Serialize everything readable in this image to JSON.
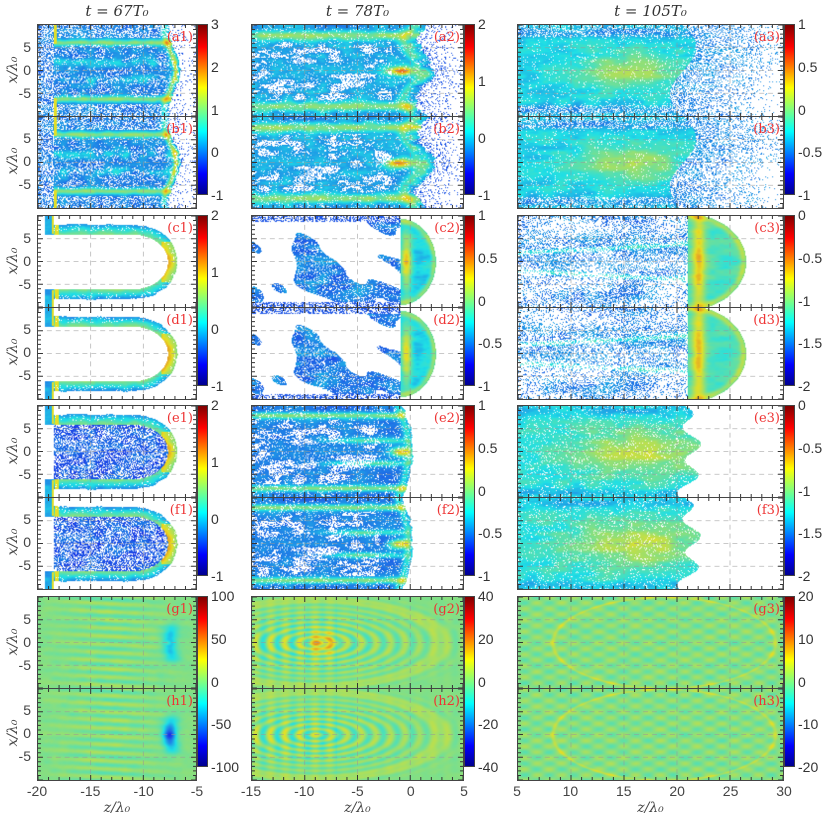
{
  "chart_data": {
    "type": "heatmap",
    "colormap": "jet",
    "ylabel": "x/λ₀",
    "ylim": [
      -10,
      10
    ],
    "yticks": [
      5,
      0,
      -5
    ],
    "columns": [
      {
        "title": "t = 67T₀",
        "xlabel": "z/λ₀",
        "xlim": [
          -20,
          -5
        ],
        "xticks": [
          -20,
          -15,
          -10,
          -5
        ]
      },
      {
        "title": "t = 78T₀",
        "xlabel": "z/λ₀",
        "xlim": [
          -15,
          5
        ],
        "xticks": [
          -15,
          -10,
          -5,
          0,
          5
        ]
      },
      {
        "title": "t = 105T₀",
        "xlabel": "z/λ₀",
        "xlim": [
          5,
          30
        ],
        "xticks": [
          5,
          10,
          15,
          20,
          25,
          30
        ]
      }
    ],
    "panels": [
      {
        "label": "(a1)",
        "row": 0,
        "col": 0
      },
      {
        "label": "(a2)",
        "row": 0,
        "col": 1
      },
      {
        "label": "(a3)",
        "row": 0,
        "col": 2
      },
      {
        "label": "(b1)",
        "row": 1,
        "col": 0
      },
      {
        "label": "(b2)",
        "row": 1,
        "col": 1
      },
      {
        "label": "(b3)",
        "row": 1,
        "col": 2
      },
      {
        "label": "(c1)",
        "row": 2,
        "col": 0
      },
      {
        "label": "(c2)",
        "row": 2,
        "col": 1
      },
      {
        "label": "(c3)",
        "row": 2,
        "col": 2
      },
      {
        "label": "(d1)",
        "row": 3,
        "col": 0
      },
      {
        "label": "(d2)",
        "row": 3,
        "col": 1
      },
      {
        "label": "(d3)",
        "row": 3,
        "col": 2
      },
      {
        "label": "(e1)",
        "row": 4,
        "col": 0
      },
      {
        "label": "(e2)",
        "row": 4,
        "col": 1
      },
      {
        "label": "(e3)",
        "row": 4,
        "col": 2
      },
      {
        "label": "(f1)",
        "row": 5,
        "col": 0
      },
      {
        "label": "(f2)",
        "row": 5,
        "col": 1
      },
      {
        "label": "(f3)",
        "row": 5,
        "col": 2
      },
      {
        "label": "(g1)",
        "row": 6,
        "col": 0
      },
      {
        "label": "(g2)",
        "row": 6,
        "col": 1
      },
      {
        "label": "(g3)",
        "row": 6,
        "col": 2
      },
      {
        "label": "(h1)",
        "row": 7,
        "col": 0
      },
      {
        "label": "(h2)",
        "row": 7,
        "col": 1
      },
      {
        "label": "(h3)",
        "row": 7,
        "col": 2
      }
    ],
    "colorbars": [
      {
        "pair": 0,
        "col": 0,
        "range": [
          -1,
          3
        ],
        "ticks": [
          "3",
          "2",
          "1",
          "0",
          "-1"
        ]
      },
      {
        "pair": 0,
        "col": 1,
        "range": [
          -1,
          2
        ],
        "ticks": [
          "2",
          "1",
          "0",
          "-1"
        ]
      },
      {
        "pair": 0,
        "col": 2,
        "range": [
          -1,
          1
        ],
        "ticks": [
          "1",
          "0.5",
          "0",
          "-0.5",
          "-1"
        ]
      },
      {
        "pair": 1,
        "col": 0,
        "range": [
          -1,
          2
        ],
        "ticks": [
          "2",
          "1",
          "0",
          "-1"
        ]
      },
      {
        "pair": 1,
        "col": 1,
        "range": [
          -1,
          1
        ],
        "ticks": [
          "1",
          "0.5",
          "0",
          "-0.5",
          "-1"
        ]
      },
      {
        "pair": 1,
        "col": 2,
        "range": [
          -2,
          0
        ],
        "ticks": [
          "0",
          "-0.5",
          "-1",
          "-1.5",
          "-2"
        ]
      },
      {
        "pair": 2,
        "col": 0,
        "range": [
          -1,
          2
        ],
        "ticks": [
          "2",
          "1",
          "0",
          "-1"
        ]
      },
      {
        "pair": 2,
        "col": 1,
        "range": [
          -1,
          1
        ],
        "ticks": [
          "1",
          "0.5",
          "0",
          "-0.5",
          "-1"
        ]
      },
      {
        "pair": 2,
        "col": 2,
        "range": [
          -2,
          0
        ],
        "ticks": [
          "0",
          "-0.5",
          "-1",
          "-1.5",
          "-2"
        ]
      },
      {
        "pair": 3,
        "col": 0,
        "range": [
          -100,
          100
        ],
        "ticks": [
          "100",
          "50",
          "0",
          "-50",
          "-100"
        ]
      },
      {
        "pair": 3,
        "col": 1,
        "range": [
          -40,
          40
        ],
        "ticks": [
          "40",
          "20",
          "0",
          "-20",
          "-40"
        ]
      },
      {
        "pair": 3,
        "col": 2,
        "range": [
          -20,
          20
        ],
        "ticks": [
          "20",
          "10",
          "0",
          "-10",
          "-20"
        ]
      }
    ]
  }
}
